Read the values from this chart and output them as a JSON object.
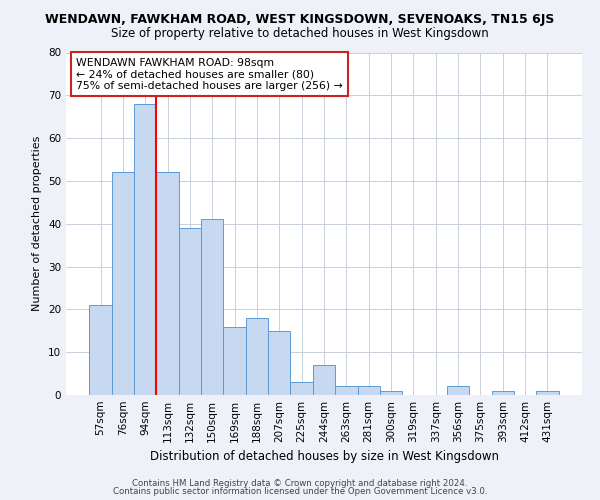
{
  "title": "WENDAWN, FAWKHAM ROAD, WEST KINGSDOWN, SEVENOAKS, TN15 6JS",
  "subtitle": "Size of property relative to detached houses in West Kingsdown",
  "xlabel": "Distribution of detached houses by size in West Kingsdown",
  "ylabel": "Number of detached properties",
  "bar_labels": [
    "57sqm",
    "76sqm",
    "94sqm",
    "113sqm",
    "132sqm",
    "150sqm",
    "169sqm",
    "188sqm",
    "207sqm",
    "225sqm",
    "244sqm",
    "263sqm",
    "281sqm",
    "300sqm",
    "319sqm",
    "337sqm",
    "356sqm",
    "375sqm",
    "393sqm",
    "412sqm",
    "431sqm"
  ],
  "bar_values": [
    21,
    52,
    68,
    52,
    39,
    41,
    16,
    18,
    15,
    3,
    7,
    2,
    2,
    1,
    0,
    0,
    2,
    0,
    1,
    0,
    1
  ],
  "bar_color": "#c6d9f0",
  "bar_edge_color": "#5b9bd5",
  "vline_x": 2.5,
  "vline_color": "red",
  "ylim": [
    0,
    80
  ],
  "yticks": [
    0,
    10,
    20,
    30,
    40,
    50,
    60,
    70,
    80
  ],
  "annotation_title": "WENDAWN FAWKHAM ROAD: 98sqm",
  "annotation_line1": "← 24% of detached houses are smaller (80)",
  "annotation_line2": "75% of semi-detached houses are larger (256) →",
  "footer_line1": "Contains HM Land Registry data © Crown copyright and database right 2024.",
  "footer_line2": "Contains public sector information licensed under the Open Government Licence v3.0.",
  "background_color": "#eef2f8",
  "plot_bg_color": "#ffffff",
  "grid_color": "#c8d0dc"
}
